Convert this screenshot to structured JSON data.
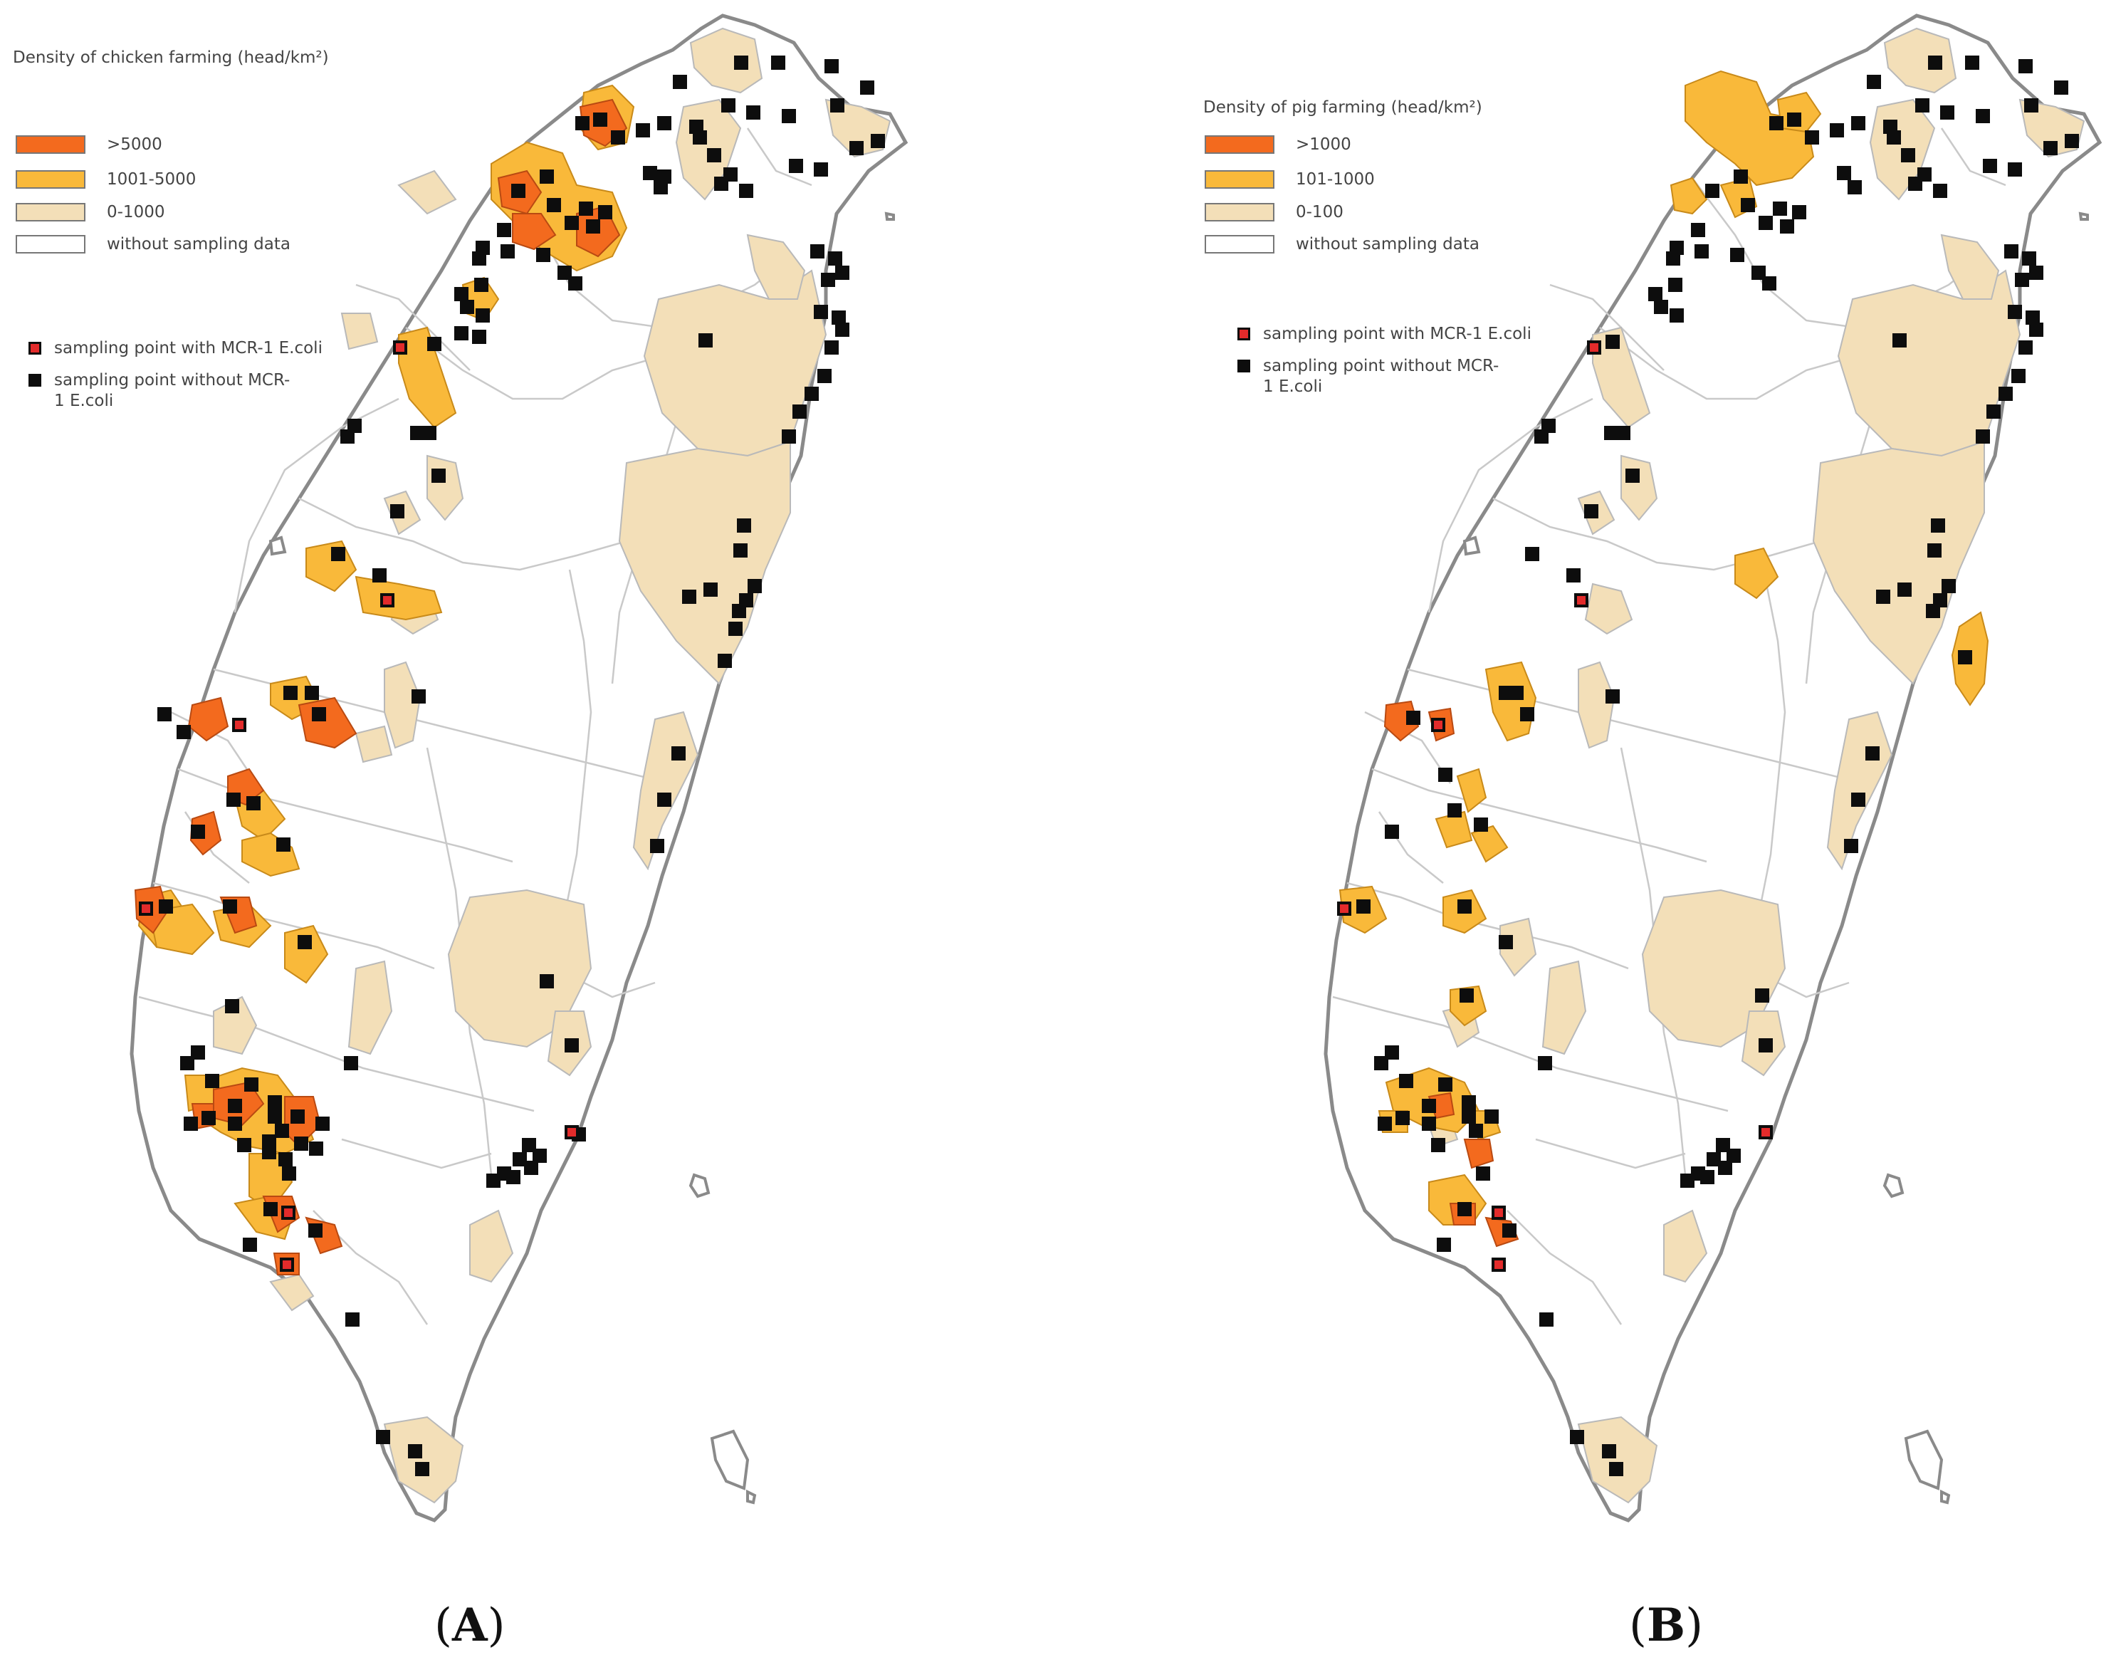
{
  "colors": {
    "high": "#f36a1e",
    "mid": "#f9b93a",
    "low": "#f3dfb8",
    "none": "#ffffff",
    "outline": "#8a8a8a",
    "point_positive_fill": "#e32b2b",
    "point_negative_fill": "#0d0d0d"
  },
  "panels": [
    {
      "id": "A",
      "legend_title": "Density of chicken farming (head/km²)",
      "classes": [
        {
          "label": ">5000",
          "color_key": "high"
        },
        {
          "label": "1001-5000",
          "color_key": "mid"
        },
        {
          "label": "0-1000",
          "color_key": "low"
        },
        {
          "label": "without sampling data",
          "color_key": "none"
        }
      ],
      "point_legend": [
        {
          "label": "sampling point with MCR-1 E.coli",
          "type": "positive"
        },
        {
          "label": "sampling point without MCR-1 E.coli",
          "type": "negative"
        }
      ],
      "caption_letter": "A"
    },
    {
      "id": "B",
      "legend_title": "Density of pig farming (head/km²)",
      "classes": [
        {
          "label": ">1000",
          "color_key": "high"
        },
        {
          "label": "101-1000",
          "color_key": "mid"
        },
        {
          "label": "0-100",
          "color_key": "low"
        },
        {
          "label": "without sampling data",
          "color_key": "none"
        }
      ],
      "point_legend": [
        {
          "label": "sampling point with MCR-1 E.coli",
          "type": "positive"
        },
        {
          "label": "sampling point without MCR-1 E.coli",
          "type": "negative"
        }
      ],
      "caption_letter": "B"
    }
  ]
}
